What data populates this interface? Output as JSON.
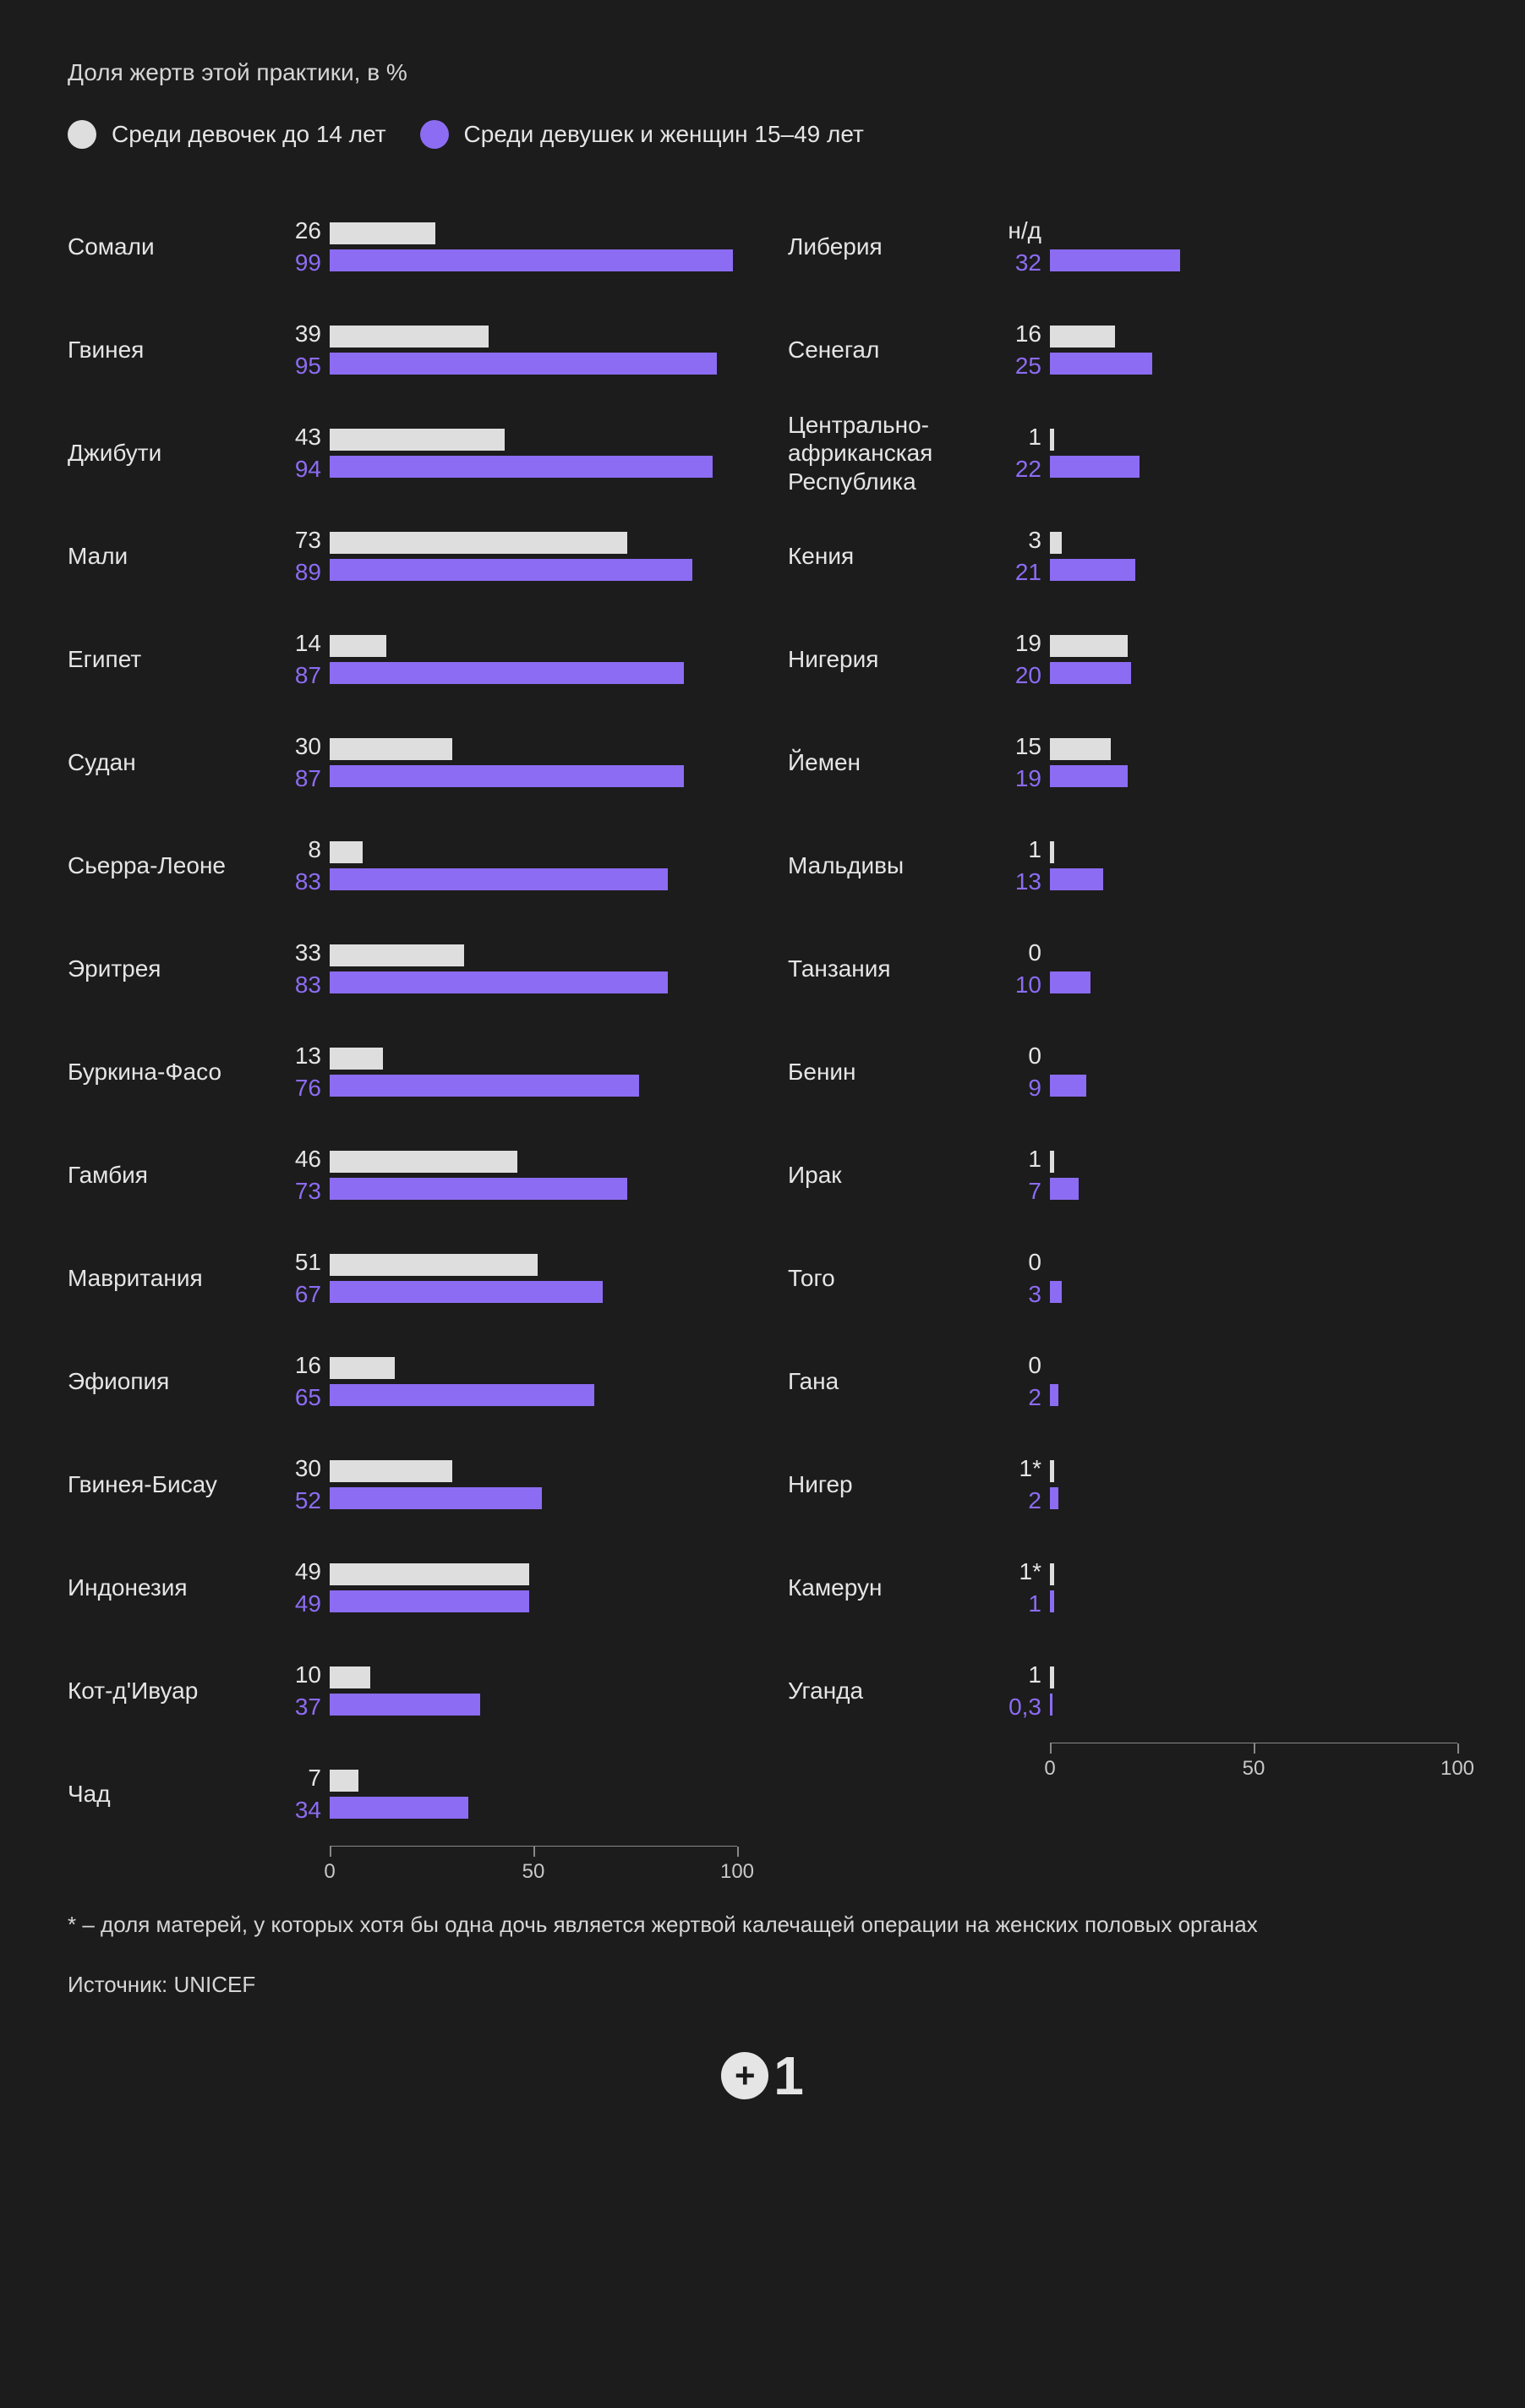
{
  "subtitle": "Доля жертв этой практики, в %",
  "legend": {
    "a": {
      "label": "Среди девочек до 14 лет",
      "color": "#dedede"
    },
    "b": {
      "label": "Среди девушек и женщин 15–49 лет",
      "color": "#8c6cf2"
    }
  },
  "max_value": 100,
  "axis_ticks": [
    0,
    50,
    100
  ],
  "left_column": [
    {
      "country": "Сомали",
      "a": 26,
      "a_label": "26",
      "b": 99,
      "b_label": "99"
    },
    {
      "country": "Гвинея",
      "a": 39,
      "a_label": "39",
      "b": 95,
      "b_label": "95"
    },
    {
      "country": "Джибути",
      "a": 43,
      "a_label": "43",
      "b": 94,
      "b_label": "94"
    },
    {
      "country": "Мали",
      "a": 73,
      "a_label": "73",
      "b": 89,
      "b_label": "89"
    },
    {
      "country": "Египет",
      "a": 14,
      "a_label": "14",
      "b": 87,
      "b_label": "87"
    },
    {
      "country": "Судан",
      "a": 30,
      "a_label": "30",
      "b": 87,
      "b_label": "87"
    },
    {
      "country": "Сьерра-Леоне",
      "a": 8,
      "a_label": "8",
      "b": 83,
      "b_label": "83"
    },
    {
      "country": "Эритрея",
      "a": 33,
      "a_label": "33",
      "b": 83,
      "b_label": "83"
    },
    {
      "country": "Буркина-Фасо",
      "a": 13,
      "a_label": "13",
      "b": 76,
      "b_label": "76"
    },
    {
      "country": "Гамбия",
      "a": 46,
      "a_label": "46",
      "b": 73,
      "b_label": "73"
    },
    {
      "country": "Мавритания",
      "a": 51,
      "a_label": "51",
      "b": 67,
      "b_label": "67"
    },
    {
      "country": "Эфиопия",
      "a": 16,
      "a_label": "16",
      "b": 65,
      "b_label": "65"
    },
    {
      "country": "Гвинея-Бисау",
      "a": 30,
      "a_label": "30",
      "b": 52,
      "b_label": "52"
    },
    {
      "country": "Индонезия",
      "a": 49,
      "a_label": "49",
      "b": 49,
      "b_label": "49"
    },
    {
      "country": "Кот-д'Ивуар",
      "a": 10,
      "a_label": "10",
      "b": 37,
      "b_label": "37"
    },
    {
      "country": "Чад",
      "a": 7,
      "a_label": "7",
      "b": 34,
      "b_label": "34"
    }
  ],
  "right_column": [
    {
      "country": "Либерия",
      "a": null,
      "a_label": "н/д",
      "b": 32,
      "b_label": "32"
    },
    {
      "country": "Сенегал",
      "a": 16,
      "a_label": "16",
      "b": 25,
      "b_label": "25"
    },
    {
      "country": "Центрально-\nафриканская\nРеспублика",
      "a": 1,
      "a_label": "1",
      "b": 22,
      "b_label": "22"
    },
    {
      "country": "Кения",
      "a": 3,
      "a_label": "3",
      "b": 21,
      "b_label": "21"
    },
    {
      "country": "Нигерия",
      "a": 19,
      "a_label": "19",
      "b": 20,
      "b_label": "20"
    },
    {
      "country": "Йемен",
      "a": 15,
      "a_label": "15",
      "b": 19,
      "b_label": "19"
    },
    {
      "country": "Мальдивы",
      "a": 1,
      "a_label": "1",
      "b": 13,
      "b_label": "13"
    },
    {
      "country": "Танзания",
      "a": 0,
      "a_label": "0",
      "b": 10,
      "b_label": "10"
    },
    {
      "country": "Бенин",
      "a": 0,
      "a_label": "0",
      "b": 9,
      "b_label": "9"
    },
    {
      "country": "Ирак",
      "a": 1,
      "a_label": "1",
      "b": 7,
      "b_label": "7"
    },
    {
      "country": "Того",
      "a": 0,
      "a_label": "0",
      "b": 3,
      "b_label": "3"
    },
    {
      "country": "Гана",
      "a": 0,
      "a_label": "0",
      "b": 2,
      "b_label": "2"
    },
    {
      "country": "Нигер",
      "a": 1,
      "a_label": "1*",
      "b": 2,
      "b_label": "2"
    },
    {
      "country": "Камерун",
      "a": 1,
      "a_label": "1*",
      "b": 1,
      "b_label": "1"
    },
    {
      "country": "Уганда",
      "a": 1,
      "a_label": "1",
      "b": 0.3,
      "b_label": "0,3"
    }
  ],
  "footnote": "* – доля матерей, у которых хотя бы одна дочь является жертвой калечащей операции на женских половых органах",
  "source": "Источник: UNICEF",
  "logo": {
    "plus": "+",
    "one": "1"
  }
}
